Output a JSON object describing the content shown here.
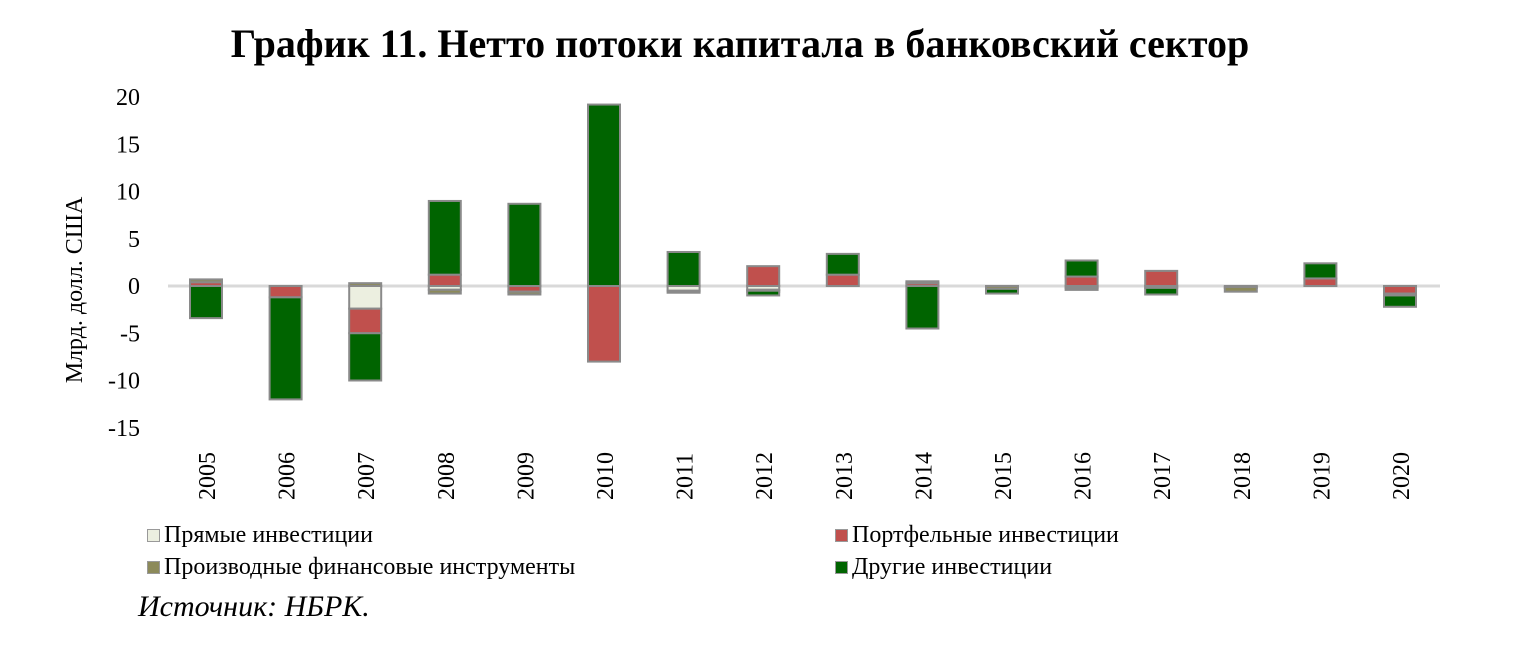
{
  "title": "График 11. Нетто потоки капитала в банковский сектор",
  "source": "Источник: НБРК.",
  "colors": {
    "direct": "#ecefe0",
    "portfolio": "#c0504d",
    "derivatives": "#8c8a5a",
    "other": "#006400",
    "border": "#8a8a8a",
    "zero": "#d9d9d9"
  },
  "legend": [
    {
      "label": "Прямые инвестиции",
      "key": "direct"
    },
    {
      "label": "Портфельные инвестиции",
      "key": "portfolio"
    },
    {
      "label": "Производные финансовые инструменты",
      "key": "derivatives"
    },
    {
      "label": "Другие инвестиции",
      "key": "other"
    }
  ],
  "chart_data": {
    "type": "bar",
    "stacked": true,
    "title": "График 11. Нетто потоки капитала в банковский сектор",
    "xlabel": "",
    "ylabel": "Млрд. долл. США",
    "ylim": [
      -15,
      20
    ],
    "yticks": [
      20,
      15,
      10,
      5,
      0,
      -5,
      -10,
      -15
    ],
    "legend_position": "bottom",
    "grid": false,
    "categories": [
      "2005",
      "2006",
      "2007",
      "2008",
      "2009",
      "2010",
      "2011",
      "2012",
      "2013",
      "2014",
      "2015",
      "2016",
      "2017",
      "2018",
      "2019",
      "2020"
    ],
    "series": [
      {
        "name": "Прямые инвестиции",
        "key": "direct",
        "values": [
          0,
          0,
          -2.4,
          -0.4,
          0,
          0,
          -0.5,
          -0.4,
          0,
          0,
          0,
          -0.2,
          -0.2,
          -0.1,
          0,
          0
        ]
      },
      {
        "name": "Портфельные инвестиции",
        "key": "portfolio",
        "values": [
          0.4,
          -1.2,
          -2.6,
          1.2,
          -0.6,
          -8.0,
          0,
          2.1,
          1.2,
          0.3,
          0,
          1.0,
          1.6,
          0,
          0.8,
          -0.8
        ]
      },
      {
        "name": "Производные финансовые инструменты",
        "key": "derivatives",
        "values": [
          0.3,
          0,
          0.3,
          -0.4,
          -0.3,
          0,
          -0.2,
          -0.1,
          0,
          0.2,
          -0.3,
          -0.1,
          0,
          -0.5,
          0,
          -0.2
        ]
      },
      {
        "name": "Другие инвестиции",
        "key": "other",
        "values": [
          -3.4,
          -10.8,
          -5.0,
          7.8,
          8.7,
          19.2,
          3.6,
          -0.5,
          2.2,
          -4.5,
          -0.5,
          1.7,
          -0.7,
          0,
          1.6,
          -1.2
        ]
      }
    ]
  }
}
